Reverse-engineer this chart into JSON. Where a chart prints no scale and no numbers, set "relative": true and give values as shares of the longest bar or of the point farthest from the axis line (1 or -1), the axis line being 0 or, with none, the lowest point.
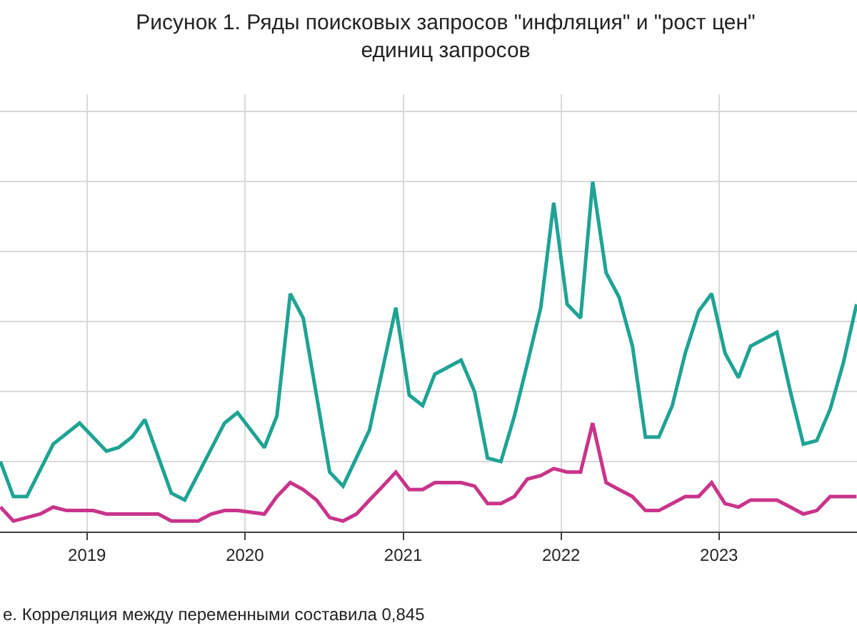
{
  "chart_data": {
    "type": "line",
    "relative": true,
    "title": "Рисунок 1. Ряды поисковых запросов \"инфляция\" и \"рост цен\"\nединиц запросов",
    "annotations": [
      "е. Корреляция между переменными составила 0,845"
    ],
    "grid": true,
    "xlim": [
      "2018-06-14",
      "2023-11-16"
    ],
    "xticks": [
      {
        "value": "2019-01-01",
        "label": "2019"
      },
      {
        "value": "2020-01-01",
        "label": "2020"
      },
      {
        "value": "2021-01-01",
        "label": "2021"
      },
      {
        "value": "2022-01-01",
        "label": "2022"
      },
      {
        "value": "2023-01-01",
        "label": "2023"
      }
    ],
    "series": [
      {
        "color": "#1fa394",
        "x": [
          "2018-06-15",
          "2018-07-15",
          "2018-08-15",
          "2018-10-15",
          "2018-12-15",
          "2019-02-15",
          "2019-03-15",
          "2019-04-15",
          "2019-05-15",
          "2019-07-15",
          "2019-08-15",
          "2019-11-15",
          "2019-12-15",
          "2020-02-15",
          "2020-03-15",
          "2020-04-15",
          "2020-05-15",
          "2020-07-15",
          "2020-08-15",
          "2020-10-15",
          "2020-12-15",
          "2021-01-15",
          "2021-02-15",
          "2021-03-15",
          "2021-05-15",
          "2021-06-15",
          "2021-07-15",
          "2021-08-15",
          "2021-09-15",
          "2021-10-15",
          "2021-11-15",
          "2021-12-15",
          "2022-01-15",
          "2022-02-15",
          "2022-03-15",
          "2022-04-15",
          "2022-05-15",
          "2022-06-15",
          "2022-07-15",
          "2022-08-15",
          "2022-09-15",
          "2022-10-15",
          "2022-11-15",
          "2022-12-15",
          "2023-01-15",
          "2023-02-15",
          "2023-03-15",
          "2023-05-15",
          "2023-06-15",
          "2023-07-15",
          "2023-08-15",
          "2023-09-15",
          "2023-10-15",
          "2023-11-15"
        ],
        "values": [
          0.2,
          0.1,
          0.1,
          0.25,
          0.31,
          0.23,
          0.24,
          0.27,
          0.32,
          0.11,
          0.09,
          0.31,
          0.34,
          0.24,
          0.33,
          0.68,
          0.61,
          0.17,
          0.13,
          0.29,
          0.64,
          0.39,
          0.36,
          0.45,
          0.49,
          0.4,
          0.21,
          0.2,
          0.33,
          0.48,
          0.64,
          0.94,
          0.65,
          0.61,
          1.0,
          0.74,
          0.67,
          0.53,
          0.27,
          0.27,
          0.36,
          0.51,
          0.63,
          0.68,
          0.51,
          0.44,
          0.53,
          0.57,
          0.4,
          0.25,
          0.26,
          0.35,
          0.48,
          0.65
        ]
      },
      {
        "color": "#c9348a",
        "x": [
          "2018-06-15",
          "2018-07-15",
          "2018-08-15",
          "2018-09-15",
          "2018-10-15",
          "2018-11-15",
          "2018-12-15",
          "2019-01-15",
          "2019-02-15",
          "2019-03-15",
          "2019-04-15",
          "2019-05-15",
          "2019-06-15",
          "2019-07-15",
          "2019-08-15",
          "2019-09-15",
          "2019-10-15",
          "2019-11-15",
          "2019-12-15",
          "2020-02-15",
          "2020-03-15",
          "2020-04-15",
          "2020-05-15",
          "2020-06-15",
          "2020-07-15",
          "2020-08-15",
          "2020-09-15",
          "2020-10-15",
          "2020-11-15",
          "2020-12-15",
          "2021-01-15",
          "2021-02-15",
          "2021-03-15",
          "2021-04-15",
          "2021-05-15",
          "2021-06-15",
          "2021-07-15",
          "2021-08-15",
          "2021-09-15",
          "2021-10-15",
          "2021-11-15",
          "2021-12-15",
          "2022-01-15",
          "2022-02-15",
          "2022-03-15",
          "2022-04-15",
          "2022-05-15",
          "2022-06-15",
          "2022-07-15",
          "2022-08-15",
          "2022-09-15",
          "2022-10-15",
          "2022-11-15",
          "2022-12-15",
          "2023-01-15",
          "2023-02-15",
          "2023-03-15",
          "2023-05-15",
          "2023-06-15",
          "2023-07-15",
          "2023-08-15",
          "2023-09-15",
          "2023-10-15",
          "2023-11-15"
        ],
        "values": [
          0.07,
          0.03,
          0.04,
          0.05,
          0.07,
          0.06,
          0.06,
          0.06,
          0.05,
          0.05,
          0.05,
          0.05,
          0.05,
          0.03,
          0.03,
          0.03,
          0.05,
          0.06,
          0.06,
          0.05,
          0.1,
          0.14,
          0.12,
          0.09,
          0.04,
          0.03,
          0.05,
          0.09,
          0.13,
          0.17,
          0.12,
          0.12,
          0.14,
          0.14,
          0.14,
          0.13,
          0.08,
          0.08,
          0.1,
          0.15,
          0.16,
          0.18,
          0.17,
          0.17,
          0.31,
          0.14,
          0.12,
          0.1,
          0.06,
          0.06,
          0.08,
          0.1,
          0.1,
          0.14,
          0.08,
          0.07,
          0.09,
          0.09,
          0.07,
          0.05,
          0.06,
          0.1,
          0.1,
          0.1
        ]
      }
    ]
  }
}
